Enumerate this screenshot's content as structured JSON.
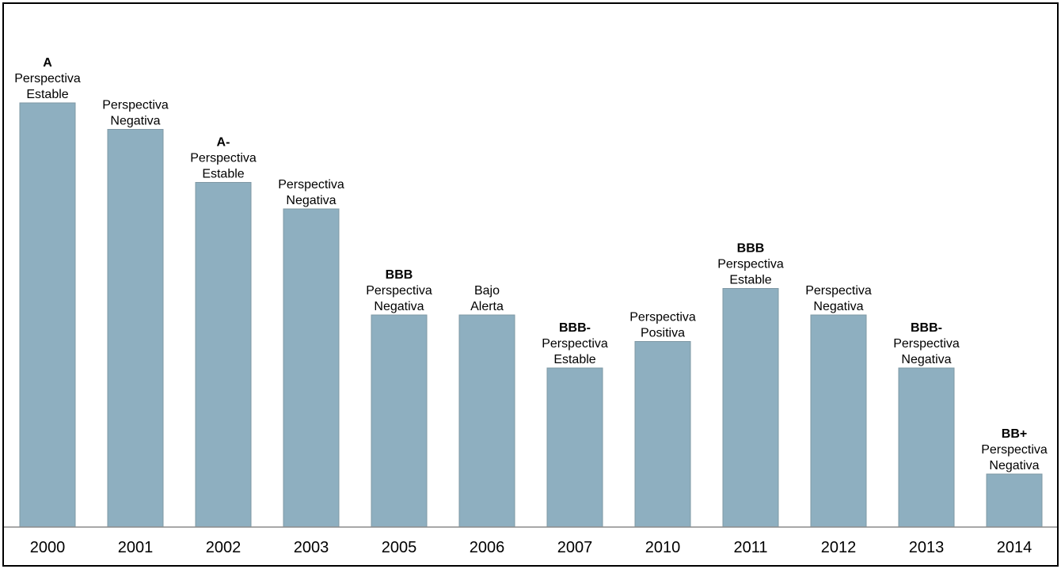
{
  "chart_data": {
    "type": "bar",
    "categories": [
      "2000",
      "2001",
      "2002",
      "2003",
      "2005",
      "2006",
      "2007",
      "2010",
      "2011",
      "2012",
      "2013",
      "2014"
    ],
    "values": [
      16,
      15,
      13,
      12,
      8,
      8,
      6,
      7,
      9,
      8,
      6,
      2
    ],
    "ylim": [
      0,
      18
    ],
    "grid": false,
    "legend": "none",
    "title": "",
    "xlabel": "",
    "ylabel": "",
    "colors": {
      "bar": "#8eafc0",
      "bar_edge": "#7f98a5",
      "axis": "#8c8c8c"
    },
    "data_labels": [
      {
        "rating": "A",
        "lines": [
          "Perspectiva",
          "Estable"
        ]
      },
      {
        "rating": "",
        "lines": [
          "Perspectiva",
          "Negativa"
        ]
      },
      {
        "rating": "A-",
        "lines": [
          "Perspectiva",
          "Estable"
        ]
      },
      {
        "rating": "",
        "lines": [
          "Perspectiva",
          "Negativa"
        ]
      },
      {
        "rating": "BBB",
        "lines": [
          "Perspectiva",
          "Negativa"
        ]
      },
      {
        "rating": "",
        "lines": [
          "Bajo",
          "Alerta"
        ]
      },
      {
        "rating": "BBB-",
        "lines": [
          "Perspectiva",
          "Estable"
        ]
      },
      {
        "rating": "",
        "lines": [
          "Perspectiva",
          "Positiva"
        ]
      },
      {
        "rating": "BBB",
        "lines": [
          "Perspectiva",
          "Estable"
        ]
      },
      {
        "rating": "",
        "lines": [
          "Perspectiva",
          "Negativa"
        ]
      },
      {
        "rating": "BBB-",
        "lines": [
          "Perspectiva",
          "Negativa"
        ]
      },
      {
        "rating": "BB+",
        "lines": [
          "Perspectiva",
          "Negativa"
        ]
      }
    ]
  }
}
